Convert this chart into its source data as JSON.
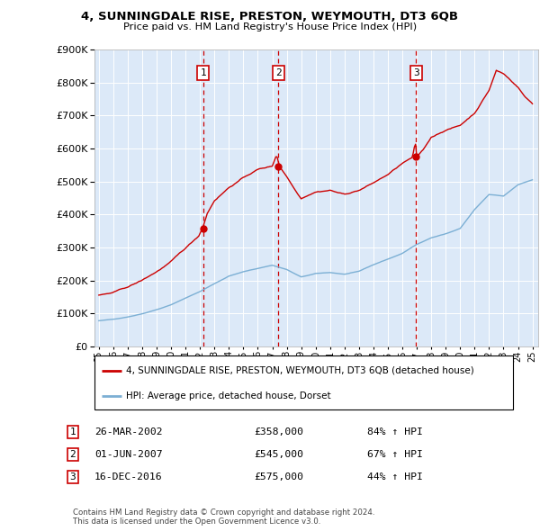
{
  "title": "4, SUNNINGDALE RISE, PRESTON, WEYMOUTH, DT3 6QB",
  "subtitle": "Price paid vs. HM Land Registry's House Price Index (HPI)",
  "ylim": [
    0,
    900000
  ],
  "yticks": [
    0,
    100000,
    200000,
    300000,
    400000,
    500000,
    600000,
    700000,
    800000,
    900000
  ],
  "red_line_color": "#cc0000",
  "blue_line_color": "#7bafd4",
  "vline_color": "#cc0000",
  "sale_dates": [
    2002.23,
    2007.42,
    2016.96
  ],
  "sale_prices": [
    358000,
    545000,
    575000
  ],
  "sale_labels": [
    "1",
    "2",
    "3"
  ],
  "legend_entries": [
    "4, SUNNINGDALE RISE, PRESTON, WEYMOUTH, DT3 6QB (detached house)",
    "HPI: Average price, detached house, Dorset"
  ],
  "table_rows": [
    [
      "1",
      "26-MAR-2002",
      "£358,000",
      "84% ↑ HPI"
    ],
    [
      "2",
      "01-JUN-2007",
      "£545,000",
      "67% ↑ HPI"
    ],
    [
      "3",
      "16-DEC-2016",
      "£575,000",
      "44% ↑ HPI"
    ]
  ],
  "footer": "Contains HM Land Registry data © Crown copyright and database right 2024.\nThis data is licensed under the Open Government Licence v3.0.",
  "plot_bg_color": "#dce9f8"
}
